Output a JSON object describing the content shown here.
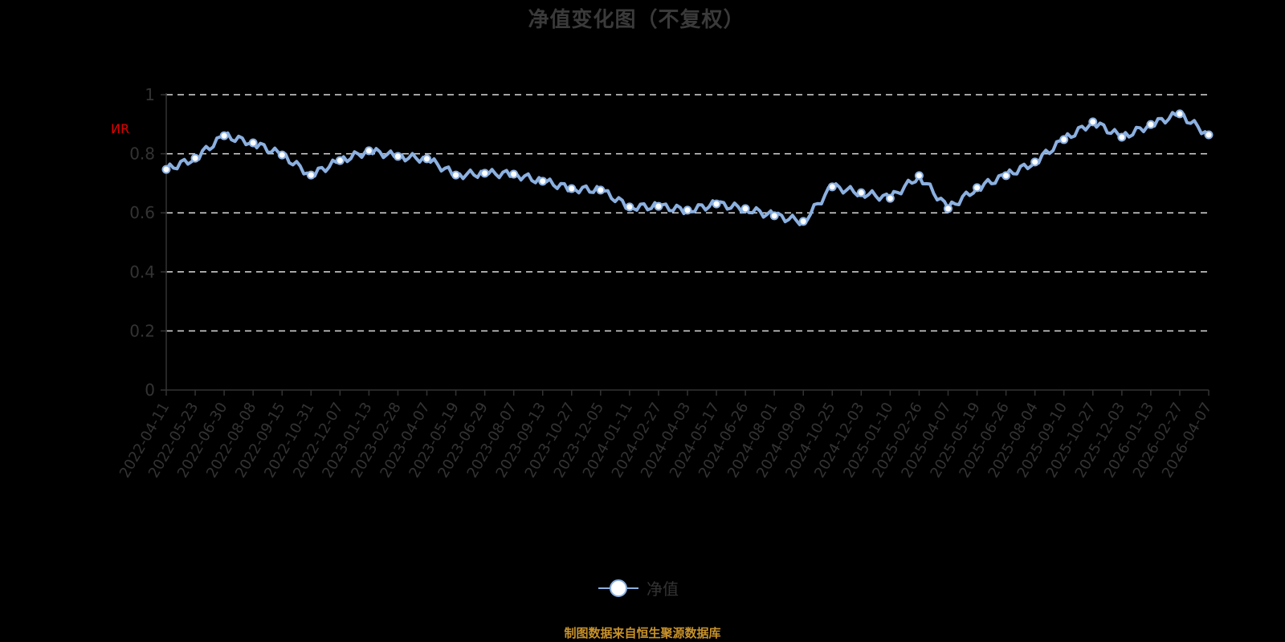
{
  "title": "净值变化图（不复权）",
  "legend": {
    "series_label": "净值",
    "color": "#8bb0e0"
  },
  "source_note": "制图数据来自恒生聚源数据库",
  "y_unit_mark": "ИR",
  "colors": {
    "background": "#000000",
    "line": "#8bb0e0",
    "marker_fill": "#ffffff",
    "grid": "#d9d9d9",
    "axis": "#333333",
    "source_text": "#c8922a",
    "unit_mark": "#e00000"
  },
  "chart_data": {
    "type": "line",
    "title": "净值变化图（不复权）",
    "xlabel": "",
    "ylabel": "",
    "ylim": [
      0,
      1
    ],
    "yticks": [
      0,
      0.2,
      0.4,
      0.6,
      0.8,
      1
    ],
    "grid": {
      "y": true,
      "style": "dashed"
    },
    "legend_position": "bottom",
    "categories": [
      "2022-04-11",
      "2022-05-23",
      "2022-06-30",
      "2022-08-08",
      "2022-09-15",
      "2022-10-31",
      "2022-12-07",
      "2023-01-13",
      "2023-02-28",
      "2023-04-07",
      "2023-05-19",
      "2023-06-29",
      "2023-08-07",
      "2023-09-13",
      "2023-10-27",
      "2023-12-05",
      "2024-01-11",
      "2024-02-27",
      "2024-04-03",
      "2024-05-17",
      "2024-06-26",
      "2024-08-01",
      "2024-09-09",
      "2024-10-25",
      "2024-12-03",
      "2025-01-10",
      "2025-02-26",
      "2025-04-07",
      "2025-05-19",
      "2025-06-26",
      "2025-08-04",
      "2025-09-10",
      "2025-10-27",
      "2025-12-03",
      "2026-01-13",
      "2026-02-27",
      "2026-04-07"
    ],
    "series": [
      {
        "name": "净值",
        "values": [
          0.747,
          0.785,
          0.861,
          0.837,
          0.796,
          0.728,
          0.777,
          0.81,
          0.791,
          0.783,
          0.728,
          0.734,
          0.731,
          0.707,
          0.682,
          0.677,
          0.62,
          0.622,
          0.609,
          0.63,
          0.614,
          0.59,
          0.571,
          0.688,
          0.668,
          0.649,
          0.726,
          0.614,
          0.685,
          0.726,
          0.772,
          0.848,
          0.908,
          0.856,
          0.899,
          0.935,
          0.864
        ]
      }
    ]
  }
}
